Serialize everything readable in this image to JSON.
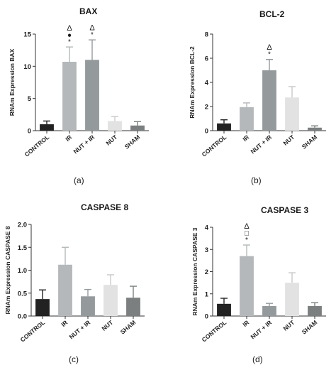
{
  "chart_data": [
    {
      "type": "bar",
      "panel_label": "(a)",
      "title": "BAX",
      "ylabel": "RNAm Expression BAX",
      "xlabel": "",
      "categories": [
        "CONTROL",
        "IR",
        "NUT + IR",
        "NUT",
        "SHAM"
      ],
      "values": [
        1.0,
        10.7,
        11.0,
        1.5,
        0.8
      ],
      "errors": [
        0.5,
        2.3,
        3.1,
        0.7,
        0.6
      ],
      "bar_colors": [
        "#222222",
        "#b4b8ba",
        "#949a9c",
        "#e2e2e2",
        "#7b7f80"
      ],
      "ylim": [
        0,
        15
      ],
      "yticks": [
        0,
        5,
        10,
        15
      ],
      "annotations": [
        {
          "category": "IR",
          "symbols": [
            "Δ",
            "●",
            "*"
          ]
        },
        {
          "category": "NUT + IR",
          "symbols": [
            "Δ",
            "*"
          ]
        }
      ],
      "grid": false
    },
    {
      "type": "bar",
      "panel_label": "(b)",
      "title": "BCL-2",
      "ylabel": "RNAm Expression BCL-2",
      "xlabel": "",
      "categories": [
        "CONTROL",
        "IR",
        "NUT + IR",
        "NUT",
        "SHAM"
      ],
      "values": [
        0.6,
        1.95,
        5.0,
        2.75,
        0.25
      ],
      "errors": [
        0.3,
        0.35,
        0.9,
        0.9,
        0.15
      ],
      "bar_colors": [
        "#222222",
        "#b4b8ba",
        "#949a9c",
        "#e2e2e2",
        "#7b7f80"
      ],
      "ylim": [
        0,
        8
      ],
      "yticks": [
        0,
        2,
        4,
        6,
        8
      ],
      "annotations": [
        {
          "category": "NUT + IR",
          "symbols": [
            "Δ",
            "*"
          ]
        }
      ],
      "grid": false
    },
    {
      "type": "bar",
      "panel_label": "(c)",
      "title": "CASPASE 8",
      "ylabel": "RNAm Expression CASPASE 8",
      "xlabel": "",
      "categories": [
        "CONTROL",
        "IR",
        "NUT + IR",
        "NUT",
        "SHAM"
      ],
      "values": [
        0.37,
        1.12,
        0.43,
        0.68,
        0.4
      ],
      "errors": [
        0.2,
        0.38,
        0.15,
        0.22,
        0.25
      ],
      "bar_colors": [
        "#222222",
        "#b4b8ba",
        "#949a9c",
        "#e2e2e2",
        "#7b7f80"
      ],
      "ylim": [
        0,
        2.0
      ],
      "yticks": [
        "0.0",
        "0.5",
        "1.0",
        "1.5",
        "2.0"
      ],
      "annotations": [],
      "grid": false
    },
    {
      "type": "bar",
      "panel_label": "(d)",
      "title": "CASPASE 3",
      "ylabel": "RNAm Expression CASPASE 3",
      "xlabel": "",
      "categories": [
        "CONTROL",
        "IR",
        "NUT + IR",
        "NUT",
        "SHAM"
      ],
      "values": [
        0.55,
        2.7,
        0.45,
        1.5,
        0.45
      ],
      "errors": [
        0.25,
        0.5,
        0.12,
        0.45,
        0.15
      ],
      "bar_colors": [
        "#222222",
        "#b4b8ba",
        "#949a9c",
        "#e2e2e2",
        "#7b7f80"
      ],
      "ylim": [
        0,
        4
      ],
      "yticks": [
        0,
        1,
        2,
        3,
        4
      ],
      "annotations": [
        {
          "category": "IR",
          "symbols": [
            "Δ",
            "□",
            "*"
          ]
        }
      ],
      "grid": false
    }
  ]
}
